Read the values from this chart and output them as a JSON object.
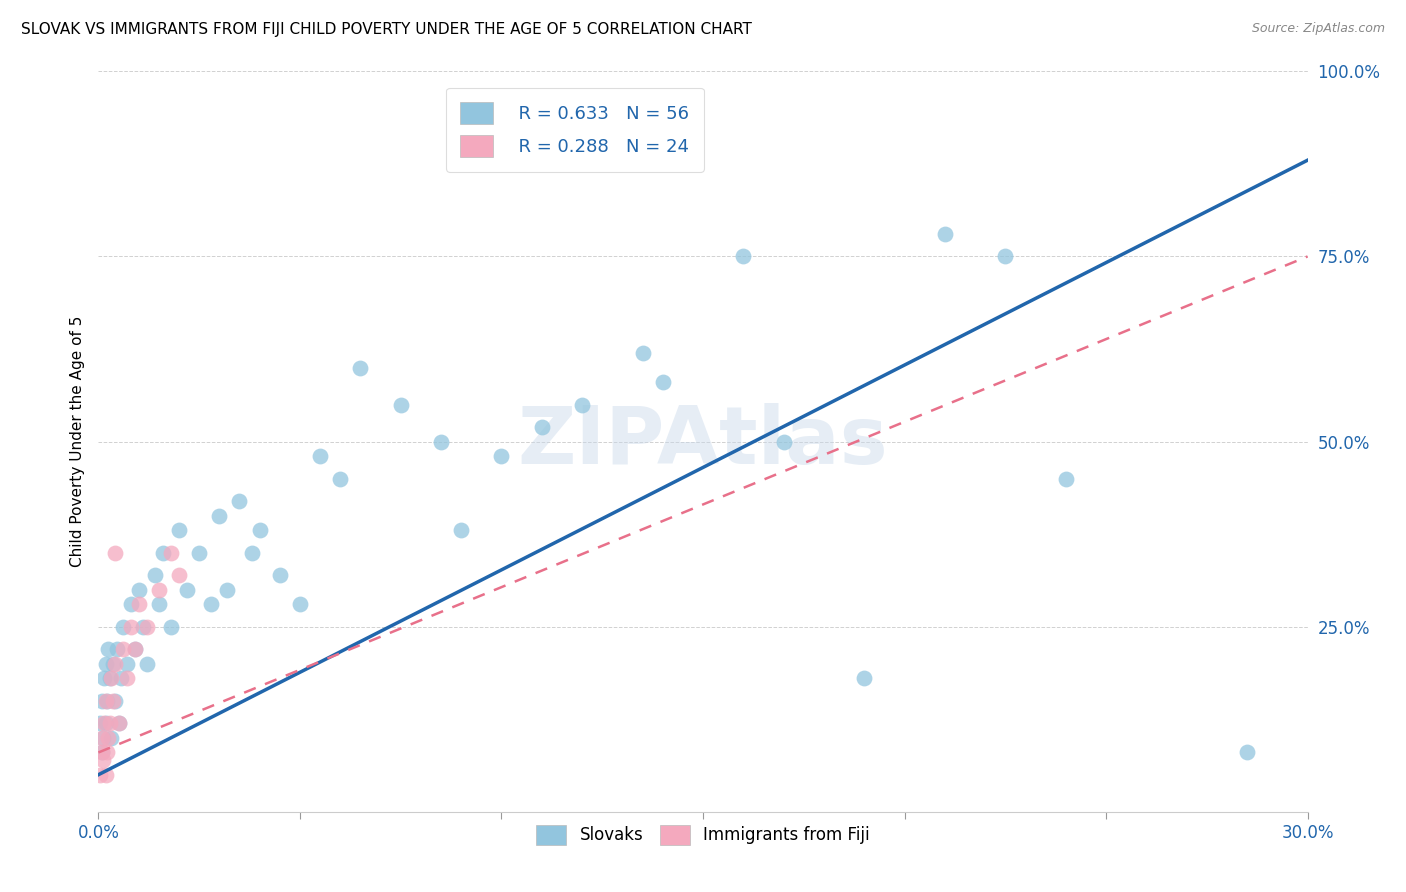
{
  "title": "SLOVAK VS IMMIGRANTS FROM FIJI CHILD POVERTY UNDER THE AGE OF 5 CORRELATION CHART",
  "source": "Source: ZipAtlas.com",
  "xlim": [
    0.0,
    30.0
  ],
  "ylim": [
    0.0,
    100.0
  ],
  "ylabel": "Child Poverty Under the Age of 5",
  "watermark": "ZIPAtlas",
  "legend_r1": "R = 0.633",
  "legend_n1": "N = 56",
  "legend_r2": "R = 0.288",
  "legend_n2": "N = 24",
  "blue_color": "#92c5de",
  "pink_color": "#f4a9be",
  "blue_line_color": "#2166ac",
  "pink_line_color": "#e8708a",
  "slovaks_x": [
    0.05,
    0.08,
    0.1,
    0.12,
    0.15,
    0.18,
    0.2,
    0.22,
    0.25,
    0.28,
    0.3,
    0.35,
    0.4,
    0.45,
    0.5,
    0.55,
    0.6,
    0.7,
    0.8,
    0.9,
    1.0,
    1.1,
    1.2,
    1.4,
    1.5,
    1.6,
    1.8,
    2.0,
    2.2,
    2.5,
    2.8,
    3.0,
    3.2,
    3.5,
    3.8,
    4.0,
    4.5,
    5.0,
    5.5,
    6.0,
    6.5,
    7.5,
    8.5,
    9.0,
    10.0,
    11.0,
    12.0,
    13.5,
    14.0,
    16.0,
    17.0,
    19.0,
    21.0,
    22.5,
    24.0,
    28.5
  ],
  "slovaks_y": [
    12.0,
    8.0,
    15.0,
    10.0,
    18.0,
    12.0,
    20.0,
    15.0,
    22.0,
    18.0,
    10.0,
    20.0,
    15.0,
    22.0,
    12.0,
    18.0,
    25.0,
    20.0,
    28.0,
    22.0,
    30.0,
    25.0,
    20.0,
    32.0,
    28.0,
    35.0,
    25.0,
    38.0,
    30.0,
    35.0,
    28.0,
    40.0,
    30.0,
    42.0,
    35.0,
    38.0,
    32.0,
    28.0,
    48.0,
    45.0,
    60.0,
    55.0,
    50.0,
    38.0,
    48.0,
    52.0,
    55.0,
    62.0,
    58.0,
    75.0,
    50.0,
    18.0,
    78.0,
    75.0,
    45.0,
    8.0
  ],
  "fiji_x": [
    0.05,
    0.08,
    0.1,
    0.12,
    0.15,
    0.18,
    0.2,
    0.22,
    0.25,
    0.28,
    0.3,
    0.35,
    0.4,
    0.5,
    0.6,
    0.7,
    0.8,
    0.9,
    1.0,
    1.2,
    1.5,
    1.8,
    2.0,
    0.4
  ],
  "fiji_y": [
    5.0,
    8.0,
    10.0,
    7.0,
    12.0,
    5.0,
    15.0,
    8.0,
    10.0,
    12.0,
    18.0,
    15.0,
    20.0,
    12.0,
    22.0,
    18.0,
    25.0,
    22.0,
    28.0,
    25.0,
    30.0,
    35.0,
    32.0,
    35.0
  ],
  "blue_trendline_x0": 0.0,
  "blue_trendline_y0": 5.0,
  "blue_trendline_x1": 30.0,
  "blue_trendline_y1": 88.0,
  "pink_trendline_x0": 0.0,
  "pink_trendline_y0": 8.0,
  "pink_trendline_x1": 30.0,
  "pink_trendline_y1": 75.0
}
